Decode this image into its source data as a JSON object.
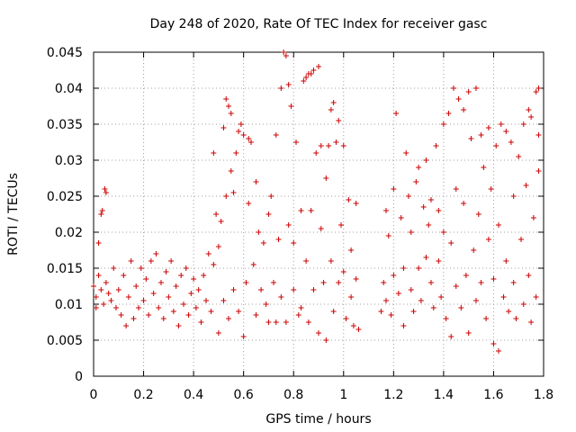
{
  "chart_data": {
    "type": "scatter",
    "title": "Day 248 of 2020, Rate Of TEC Index for receiver gasc",
    "xlabel": "GPS time / hours",
    "ylabel": "ROTI / TECUs",
    "xlim": [
      0,
      1.8
    ],
    "ylim": [
      0,
      0.045
    ],
    "x_ticks": [
      "0",
      "0.2",
      "0.4",
      "0.6",
      "0.8",
      "1",
      "1.2",
      "1.4",
      "1.6",
      "1.8"
    ],
    "y_ticks": [
      "0",
      "0.005",
      "0.01",
      "0.015",
      "0.02",
      "0.025",
      "0.03",
      "0.035",
      "0.04",
      "0.045"
    ],
    "grid": true,
    "marker": "+",
    "series_color": "#cc0000",
    "series": [
      {
        "points": [
          [
            0.0,
            0.0125
          ],
          [
            0.01,
            0.011
          ],
          [
            0.01,
            0.0095
          ],
          [
            0.02,
            0.014
          ],
          [
            0.02,
            0.0185
          ],
          [
            0.03,
            0.012
          ],
          [
            0.03,
            0.0225
          ],
          [
            0.035,
            0.023
          ],
          [
            0.04,
            0.01
          ],
          [
            0.045,
            0.026
          ],
          [
            0.05,
            0.0255
          ],
          [
            0.05,
            0.013
          ],
          [
            0.06,
            0.0115
          ],
          [
            0.07,
            0.0105
          ],
          [
            0.08,
            0.015
          ],
          [
            0.09,
            0.0095
          ],
          [
            0.1,
            0.012
          ],
          [
            0.11,
            0.0085
          ],
          [
            0.12,
            0.014
          ],
          [
            0.13,
            0.007
          ],
          [
            0.14,
            0.011
          ],
          [
            0.15,
            0.016
          ],
          [
            0.16,
            0.008
          ],
          [
            0.17,
            0.0125
          ],
          [
            0.18,
            0.0095
          ],
          [
            0.19,
            0.015
          ],
          [
            0.2,
            0.0105
          ],
          [
            0.21,
            0.0135
          ],
          [
            0.22,
            0.0085
          ],
          [
            0.23,
            0.016
          ],
          [
            0.24,
            0.0115
          ],
          [
            0.25,
            0.017
          ],
          [
            0.26,
            0.0095
          ],
          [
            0.27,
            0.013
          ],
          [
            0.28,
            0.008
          ],
          [
            0.29,
            0.0145
          ],
          [
            0.3,
            0.011
          ],
          [
            0.31,
            0.016
          ],
          [
            0.32,
            0.009
          ],
          [
            0.33,
            0.0125
          ],
          [
            0.34,
            0.007
          ],
          [
            0.35,
            0.014
          ],
          [
            0.36,
            0.01
          ],
          [
            0.37,
            0.015
          ],
          [
            0.38,
            0.0085
          ],
          [
            0.39,
            0.0115
          ],
          [
            0.4,
            0.0135
          ],
          [
            0.41,
            0.0095
          ],
          [
            0.42,
            0.012
          ],
          [
            0.43,
            0.0075
          ],
          [
            0.44,
            0.014
          ],
          [
            0.45,
            0.0105
          ],
          [
            0.46,
            0.017
          ],
          [
            0.47,
            0.009
          ],
          [
            0.48,
            0.031
          ],
          [
            0.48,
            0.0155
          ],
          [
            0.49,
            0.0225
          ],
          [
            0.5,
            0.006
          ],
          [
            0.5,
            0.018
          ],
          [
            0.51,
            0.0215
          ],
          [
            0.52,
            0.0345
          ],
          [
            0.52,
            0.0105
          ],
          [
            0.53,
            0.0385
          ],
          [
            0.53,
            0.025
          ],
          [
            0.54,
            0.0375
          ],
          [
            0.54,
            0.008
          ],
          [
            0.55,
            0.0365
          ],
          [
            0.55,
            0.0285
          ],
          [
            0.56,
            0.0255
          ],
          [
            0.56,
            0.012
          ],
          [
            0.57,
            0.031
          ],
          [
            0.58,
            0.034
          ],
          [
            0.58,
            0.009
          ],
          [
            0.59,
            0.035
          ],
          [
            0.6,
            0.0055
          ],
          [
            0.6,
            0.0335
          ],
          [
            0.61,
            0.013
          ],
          [
            0.62,
            0.033
          ],
          [
            0.62,
            0.024
          ],
          [
            0.63,
            0.0325
          ],
          [
            0.64,
            0.0155
          ],
          [
            0.65,
            0.027
          ],
          [
            0.65,
            0.0085
          ],
          [
            0.66,
            0.02
          ],
          [
            0.67,
            0.012
          ],
          [
            0.68,
            0.0185
          ],
          [
            0.69,
            0.01
          ],
          [
            0.7,
            0.0225
          ],
          [
            0.7,
            0.0075
          ],
          [
            0.71,
            0.025
          ],
          [
            0.72,
            0.013
          ],
          [
            0.73,
            0.0335
          ],
          [
            0.73,
            0.0075
          ],
          [
            0.74,
            0.019
          ],
          [
            0.75,
            0.04
          ],
          [
            0.75,
            0.011
          ],
          [
            0.76,
            0.045
          ],
          [
            0.77,
            0.0445
          ],
          [
            0.77,
            0.0075
          ],
          [
            0.78,
            0.0405
          ],
          [
            0.78,
            0.021
          ],
          [
            0.79,
            0.0375
          ],
          [
            0.8,
            0.012
          ],
          [
            0.8,
            0.0185
          ],
          [
            0.81,
            0.0325
          ],
          [
            0.82,
            0.0085
          ],
          [
            0.83,
            0.0095
          ],
          [
            0.83,
            0.023
          ],
          [
            0.84,
            0.041
          ],
          [
            0.85,
            0.0415
          ],
          [
            0.85,
            0.016
          ],
          [
            0.86,
            0.042
          ],
          [
            0.86,
            0.0075
          ],
          [
            0.87,
            0.042
          ],
          [
            0.87,
            0.023
          ],
          [
            0.88,
            0.0425
          ],
          [
            0.88,
            0.012
          ],
          [
            0.89,
            0.031
          ],
          [
            0.9,
            0.043
          ],
          [
            0.9,
            0.006
          ],
          [
            0.91,
            0.032
          ],
          [
            0.91,
            0.0205
          ],
          [
            0.92,
            0.013
          ],
          [
            0.93,
            0.0275
          ],
          [
            0.93,
            0.005
          ],
          [
            0.94,
            0.032
          ],
          [
            0.95,
            0.037
          ],
          [
            0.95,
            0.016
          ],
          [
            0.96,
            0.038
          ],
          [
            0.96,
            0.009
          ],
          [
            0.97,
            0.0325
          ],
          [
            0.98,
            0.0355
          ],
          [
            0.98,
            0.013
          ],
          [
            0.99,
            0.021
          ],
          [
            1.0,
            0.0145
          ],
          [
            1.0,
            0.032
          ],
          [
            1.01,
            0.008
          ],
          [
            1.02,
            0.0245
          ],
          [
            1.03,
            0.011
          ],
          [
            1.03,
            0.0175
          ],
          [
            1.04,
            0.007
          ],
          [
            1.05,
            0.024
          ],
          [
            1.05,
            0.0135
          ],
          [
            1.06,
            0.0065
          ],
          [
            1.15,
            0.009
          ],
          [
            1.16,
            0.013
          ],
          [
            1.17,
            0.023
          ],
          [
            1.17,
            0.0105
          ],
          [
            1.18,
            0.0195
          ],
          [
            1.19,
            0.0085
          ],
          [
            1.2,
            0.014
          ],
          [
            1.2,
            0.026
          ],
          [
            1.21,
            0.0365
          ],
          [
            1.22,
            0.0115
          ],
          [
            1.23,
            0.022
          ],
          [
            1.24,
            0.015
          ],
          [
            1.24,
            0.007
          ],
          [
            1.25,
            0.031
          ],
          [
            1.26,
            0.025
          ],
          [
            1.27,
            0.012
          ],
          [
            1.27,
            0.02
          ],
          [
            1.28,
            0.009
          ],
          [
            1.29,
            0.027
          ],
          [
            1.3,
            0.015
          ],
          [
            1.3,
            0.029
          ],
          [
            1.31,
            0.0105
          ],
          [
            1.32,
            0.0235
          ],
          [
            1.33,
            0.03
          ],
          [
            1.33,
            0.0165
          ],
          [
            1.34,
            0.021
          ],
          [
            1.35,
            0.013
          ],
          [
            1.35,
            0.0245
          ],
          [
            1.36,
            0.0095
          ],
          [
            1.37,
            0.032
          ],
          [
            1.38,
            0.016
          ],
          [
            1.38,
            0.023
          ],
          [
            1.39,
            0.011
          ],
          [
            1.4,
            0.035
          ],
          [
            1.4,
            0.02
          ],
          [
            1.41,
            0.008
          ],
          [
            1.42,
            0.0365
          ],
          [
            1.43,
            0.0185
          ],
          [
            1.43,
            0.0055
          ],
          [
            1.44,
            0.04
          ],
          [
            1.45,
            0.0125
          ],
          [
            1.45,
            0.026
          ],
          [
            1.46,
            0.0385
          ],
          [
            1.47,
            0.0095
          ],
          [
            1.48,
            0.037
          ],
          [
            1.48,
            0.024
          ],
          [
            1.49,
            0.014
          ],
          [
            1.5,
            0.0395
          ],
          [
            1.5,
            0.006
          ],
          [
            1.51,
            0.033
          ],
          [
            1.52,
            0.0175
          ],
          [
            1.53,
            0.04
          ],
          [
            1.53,
            0.0105
          ],
          [
            1.54,
            0.0225
          ],
          [
            1.55,
            0.0335
          ],
          [
            1.55,
            0.013
          ],
          [
            1.56,
            0.029
          ],
          [
            1.57,
            0.008
          ],
          [
            1.58,
            0.0345
          ],
          [
            1.58,
            0.019
          ],
          [
            1.59,
            0.026
          ],
          [
            1.6,
            0.0045
          ],
          [
            1.6,
            0.0135
          ],
          [
            1.61,
            0.032
          ],
          [
            1.62,
            0.0035
          ],
          [
            1.62,
            0.021
          ],
          [
            1.63,
            0.035
          ],
          [
            1.64,
            0.011
          ],
          [
            1.65,
            0.034
          ],
          [
            1.65,
            0.016
          ],
          [
            1.66,
            0.009
          ],
          [
            1.67,
            0.0325
          ],
          [
            1.68,
            0.025
          ],
          [
            1.68,
            0.013
          ],
          [
            1.69,
            0.008
          ],
          [
            1.7,
            0.0305
          ],
          [
            1.71,
            0.019
          ],
          [
            1.72,
            0.035
          ],
          [
            1.72,
            0.01
          ],
          [
            1.73,
            0.0265
          ],
          [
            1.74,
            0.037
          ],
          [
            1.74,
            0.014
          ],
          [
            1.75,
            0.036
          ],
          [
            1.75,
            0.0075
          ],
          [
            1.76,
            0.022
          ],
          [
            1.77,
            0.0395
          ],
          [
            1.77,
            0.011
          ],
          [
            1.78,
            0.0335
          ],
          [
            1.78,
            0.04
          ],
          [
            1.78,
            0.0285
          ]
        ]
      }
    ]
  }
}
